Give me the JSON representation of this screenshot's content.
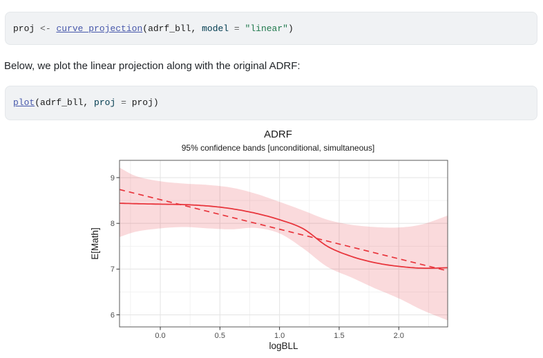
{
  "paragraph": "Below, we plot the linear projection along with the original ADRF:",
  "code_blocks": [
    {
      "name": "code-block-1",
      "tokens": [
        {
          "text": "proj ",
          "cls": "pl"
        },
        {
          "text": "<-",
          "cls": "op"
        },
        {
          "text": " ",
          "cls": "pl"
        },
        {
          "text": "curve_projection",
          "cls": "fu"
        },
        {
          "text": "(adrf_bll, ",
          "cls": "pl"
        },
        {
          "text": "model",
          "cls": "at"
        },
        {
          "text": " ",
          "cls": "pl"
        },
        {
          "text": "=",
          "cls": "op"
        },
        {
          "text": " ",
          "cls": "pl"
        },
        {
          "text": "\"linear\"",
          "cls": "st"
        },
        {
          "text": ")",
          "cls": "pl"
        }
      ]
    },
    {
      "name": "code-block-2",
      "tokens": [
        {
          "text": "plot",
          "cls": "fu"
        },
        {
          "text": "(adrf_bll, ",
          "cls": "pl"
        },
        {
          "text": "proj",
          "cls": "at"
        },
        {
          "text": " ",
          "cls": "pl"
        },
        {
          "text": "=",
          "cls": "op"
        },
        {
          "text": " ",
          "cls": "pl"
        },
        {
          "text": "proj",
          "cls": "pl"
        },
        {
          "text": ")",
          "cls": "pl"
        }
      ]
    }
  ],
  "colors": {
    "code_bg": "#f0f2f4",
    "code_border": "#e4e7ea",
    "code_text": "#1a1a1a",
    "link": "#4758AB",
    "operator": "#5E5E5E",
    "keyword": "#003B4F",
    "string": "#20794D",
    "line_red": "#e8353c",
    "band_fill": "rgba(230,60,70,0.19)",
    "grid_major": "#e5e5e5",
    "grid_minor": "#f0f0f0",
    "panel_border": "#595959",
    "tick_color": "#333333",
    "tick_label": "#4d4d4d",
    "plot_text": "#1a1a1a"
  },
  "chart_data": {
    "type": "line",
    "title": "ADRF",
    "subtitle": "95% confidence bands [unconditional, simultaneous]",
    "xlabel": "logBLL",
    "ylabel": "E[Math]",
    "xlim": [
      -0.342,
      2.41
    ],
    "ylim": [
      5.736,
      9.378
    ],
    "grid": true,
    "legend": "none",
    "x_ticks": [
      0,
      0.5,
      1.0,
      1.5,
      2.0
    ],
    "x_tick_labels": [
      "0.0",
      "0.5",
      "1.0",
      "1.5",
      "2.0"
    ],
    "x_minor_ticks": [
      -0.25,
      0.25,
      0.75,
      1.25,
      1.75,
      2.25
    ],
    "y_ticks": [
      6,
      7,
      8,
      9
    ],
    "y_tick_labels": [
      "6",
      "7",
      "8",
      "9"
    ],
    "y_minor_ticks": [
      6.5,
      7.5,
      8.5
    ],
    "series": [
      {
        "name": "ADRF",
        "style": "solid",
        "x": [
          -0.342,
          -0.2,
          0,
          0.2,
          0.4,
          0.6,
          0.8,
          1.0,
          1.2,
          1.4,
          1.6,
          1.8,
          2.0,
          2.2,
          2.41
        ],
        "y": [
          8.44,
          8.43,
          8.42,
          8.41,
          8.38,
          8.32,
          8.22,
          8.08,
          7.88,
          7.5,
          7.28,
          7.14,
          7.06,
          7.02,
          7.03
        ]
      },
      {
        "name": "linear projection",
        "style": "dashed",
        "x": [
          -0.342,
          2.41
        ],
        "y": [
          8.74,
          6.96
        ]
      }
    ],
    "band": {
      "name": "95% confidence band",
      "x": [
        -0.342,
        -0.2,
        0,
        0.2,
        0.4,
        0.6,
        0.8,
        1.0,
        1.2,
        1.4,
        1.6,
        1.8,
        2.0,
        2.2,
        2.41
      ],
      "upper": [
        9.22,
        9.03,
        8.92,
        8.87,
        8.84,
        8.78,
        8.65,
        8.47,
        8.28,
        8.08,
        7.97,
        7.92,
        7.91,
        7.98,
        8.17
      ],
      "lower": [
        7.7,
        7.82,
        7.89,
        7.92,
        7.89,
        7.87,
        7.9,
        7.78,
        7.45,
        7.05,
        6.82,
        6.58,
        6.36,
        6.1,
        5.88
      ]
    }
  }
}
